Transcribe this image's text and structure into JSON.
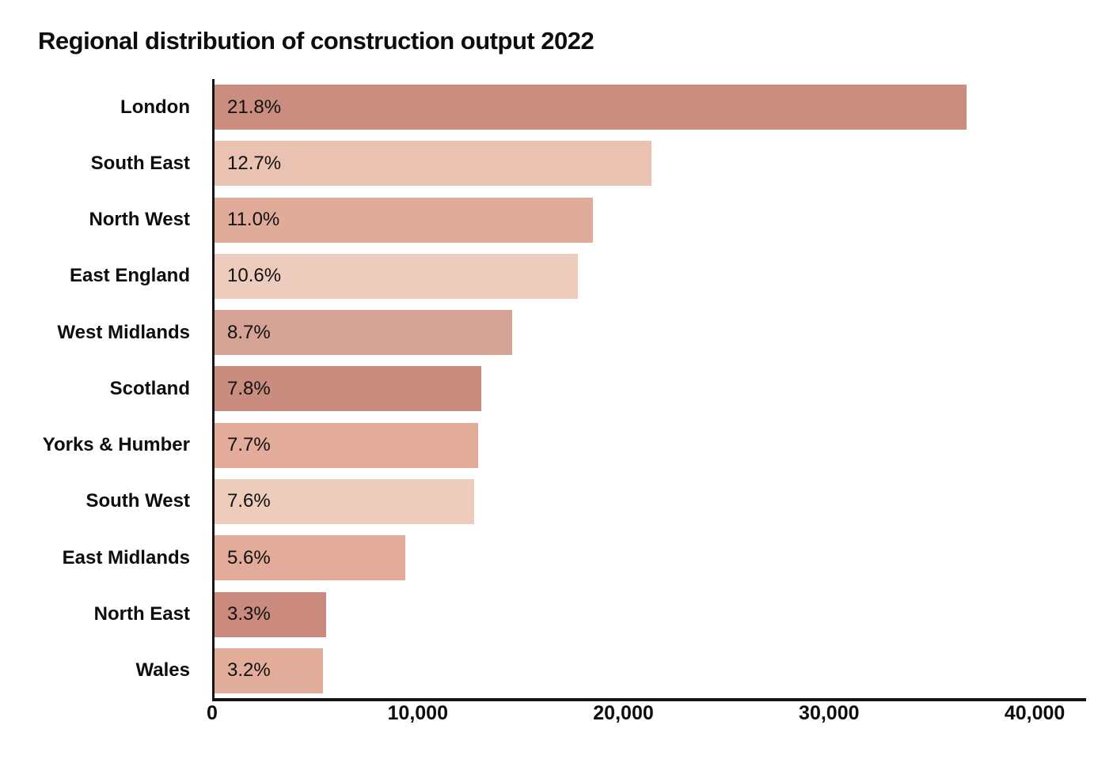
{
  "title": "Regional distribution of construction output 2022",
  "chart_data": {
    "type": "bar",
    "orientation": "horizontal",
    "title": "Regional distribution of construction output 2022",
    "xlabel": "",
    "ylabel": "",
    "grid": false,
    "legend": false,
    "xlim": [
      0,
      42500
    ],
    "categories": [
      "London",
      "South East",
      "North West",
      "East England",
      "West Midlands",
      "Scotland",
      "Yorks & Humber",
      "South West",
      "East Midlands",
      "North East",
      "Wales"
    ],
    "series": [
      {
        "name": "Construction output",
        "values": [
          36700,
          21350,
          18500,
          17800,
          14600,
          13100,
          12950,
          12750,
          9400,
          5550,
          5400
        ]
      }
    ],
    "value_labels": [
      "21.8%",
      "12.7%",
      "11.0%",
      "10.6%",
      "8.7%",
      "7.8%",
      "7.7%",
      "7.6%",
      "5.6%",
      "3.3%",
      "3.2%"
    ],
    "percentages": [
      21.8,
      12.7,
      11.0,
      10.6,
      8.7,
      7.8,
      7.7,
      7.6,
      5.6,
      3.3,
      3.2
    ],
    "bar_colors": [
      "#cb8d80",
      "#eac2b1",
      "#e1ab99",
      "#eeccbd",
      "#d6a494",
      "#ca8c7e",
      "#e2ab9a",
      "#edccbc",
      "#e2ab9a",
      "#ca8b7e",
      "#e3ad9b"
    ],
    "axis_color": "#141414",
    "label_color": "#0d0d0d",
    "x_ticks": [
      {
        "value": 0,
        "label": "0"
      },
      {
        "value": 10000,
        "label": "10,000"
      },
      {
        "value": 20000,
        "label": "20,000"
      },
      {
        "value": 30000,
        "label": "30,000"
      },
      {
        "value": 40000,
        "label": "40,000"
      }
    ]
  }
}
